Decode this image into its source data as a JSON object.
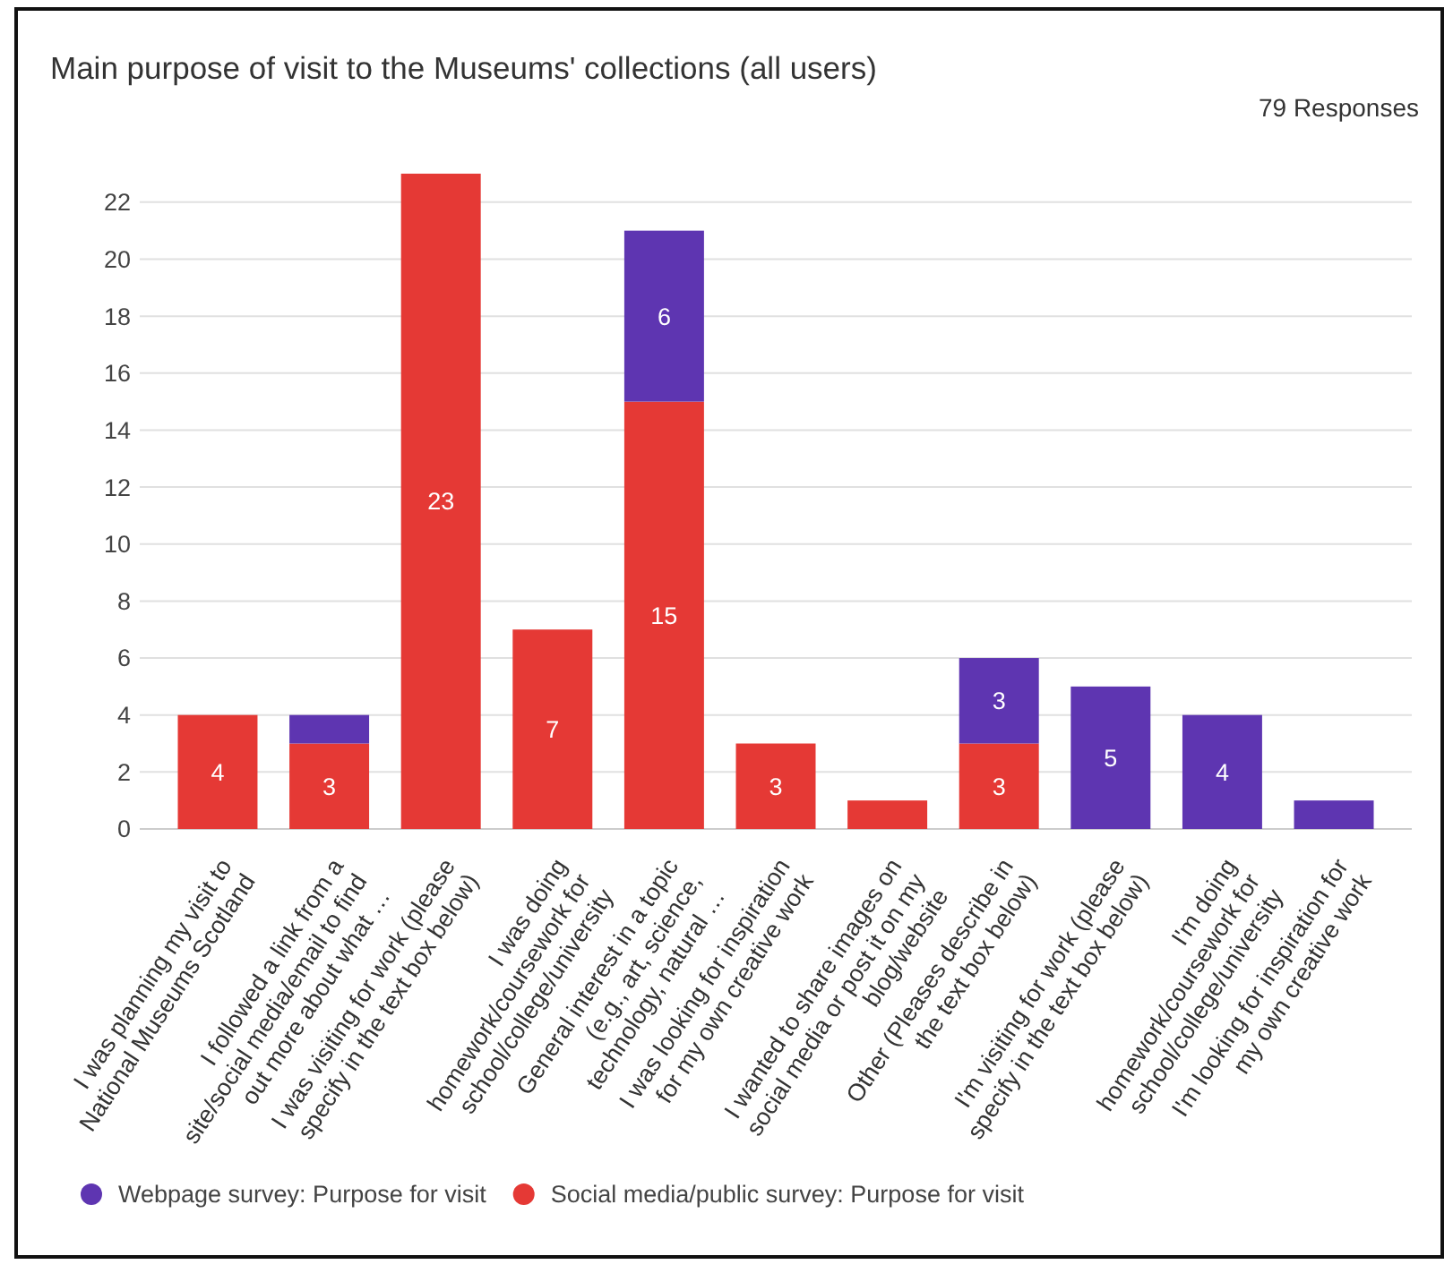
{
  "chart_data": {
    "type": "bar",
    "title": "Main purpose of visit to the Museums' collections (all users)",
    "subtitle": "79 Responses",
    "categories": [
      "I was planning my visit to National Museums Scotland",
      "I followed a link from a site/social media/email to find out more about what …",
      "I was visiting for work (please specify in the text box below)",
      "I was doing homework/coursework for school/college/university",
      "General interest in a topic (e.g., art, science, technology, natural …",
      "I was looking for inspiration for my own creative work",
      "I wanted to share images on social media or post it on my blog/website",
      "Other (Pleases describe in the text box below)",
      "I'm visiting for work (please specify in the text box below)",
      "I'm doing homework/coursework for school/college/university",
      "I'm looking for inspiration for my own creative work"
    ],
    "series": [
      {
        "name": "Social media/public survey: Purpose for visit",
        "color": "#e53935",
        "values": [
          4,
          3,
          23,
          7,
          15,
          3,
          1,
          3,
          null,
          null,
          null
        ],
        "value_labels": [
          "4",
          "3",
          "23",
          "7",
          "15",
          "3",
          null,
          "3",
          null,
          null,
          null
        ]
      },
      {
        "name": "Webpage survey: Purpose for visit",
        "color": "#5e35b1",
        "values": [
          null,
          1,
          null,
          null,
          6,
          null,
          null,
          3,
          5,
          4,
          1
        ],
        "value_labels": [
          null,
          null,
          null,
          null,
          "6",
          null,
          null,
          "3",
          "5",
          "4",
          null
        ]
      }
    ],
    "stacked": true,
    "ylim": [
      0,
      23
    ],
    "yticks": [
      0,
      2,
      4,
      6,
      8,
      10,
      12,
      14,
      16,
      18,
      20,
      22
    ],
    "grid": "y",
    "legend": "bottom"
  }
}
